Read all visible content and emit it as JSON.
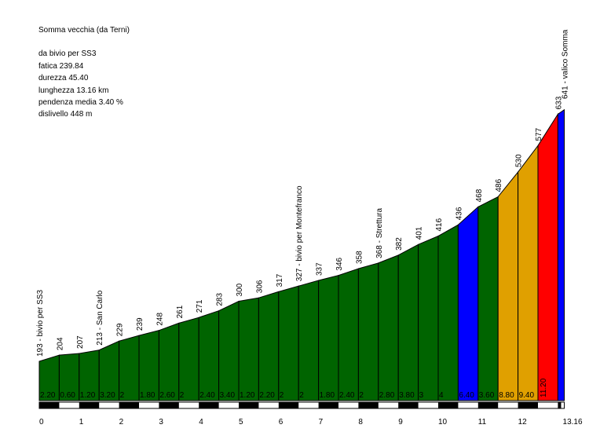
{
  "info": {
    "title": "Somma vecchia (da Terni)",
    "from": "da bivio per SS3",
    "fatica": "fatica 239.84",
    "durezza": "durezza 45.40",
    "lunghezza": "lunghezza 13.16 km",
    "pendenza": "pendenza media 3.40 %",
    "dislivello": "dislivello 448 m"
  },
  "chart_data": {
    "type": "area",
    "xlabel": "",
    "ylabel": "",
    "xlim": [
      0,
      13.16
    ],
    "ylim": [
      193,
      641
    ],
    "grid": false,
    "points": [
      {
        "km": 0.0,
        "alt": 193,
        "label": "193 - bivio per SS3"
      },
      {
        "km": 0.5,
        "alt": 204,
        "label": "204"
      },
      {
        "km": 1.0,
        "alt": 207,
        "label": "207"
      },
      {
        "km": 1.5,
        "alt": 213,
        "label": "213 - San Carlo"
      },
      {
        "km": 2.0,
        "alt": 229,
        "label": "229"
      },
      {
        "km": 2.5,
        "alt": 239,
        "label": "239"
      },
      {
        "km": 3.0,
        "alt": 248,
        "label": "248"
      },
      {
        "km": 3.5,
        "alt": 261,
        "label": "261"
      },
      {
        "km": 4.0,
        "alt": 271,
        "label": "271"
      },
      {
        "km": 4.5,
        "alt": 283,
        "label": "283"
      },
      {
        "km": 5.0,
        "alt": 300,
        "label": "300"
      },
      {
        "km": 5.5,
        "alt": 306,
        "label": "306"
      },
      {
        "km": 6.0,
        "alt": 317,
        "label": "317"
      },
      {
        "km": 6.5,
        "alt": 327,
        "label": "327 - bivio per Montefranco"
      },
      {
        "km": 7.0,
        "alt": 337,
        "label": "337"
      },
      {
        "km": 7.5,
        "alt": 346,
        "label": "346"
      },
      {
        "km": 8.0,
        "alt": 358,
        "label": "358"
      },
      {
        "km": 8.5,
        "alt": 368,
        "label": "368 - Strettura"
      },
      {
        "km": 9.0,
        "alt": 382,
        "label": "382"
      },
      {
        "km": 9.5,
        "alt": 401,
        "label": "401"
      },
      {
        "km": 10.0,
        "alt": 416,
        "label": "416"
      },
      {
        "km": 10.5,
        "alt": 436,
        "label": "436"
      },
      {
        "km": 11.0,
        "alt": 468,
        "label": "468"
      },
      {
        "km": 11.5,
        "alt": 486,
        "label": "486"
      },
      {
        "km": 12.0,
        "alt": 530,
        "label": "530"
      },
      {
        "km": 12.5,
        "alt": 577,
        "label": "577"
      },
      {
        "km": 13.0,
        "alt": 633,
        "label": "633"
      },
      {
        "km": 13.16,
        "alt": 641,
        "label": "641 - valico Somma"
      }
    ],
    "segments": [
      {
        "grade": "2.20",
        "color": "#006400"
      },
      {
        "grade": "0.60",
        "color": "#006400"
      },
      {
        "grade": "1.20",
        "color": "#006400"
      },
      {
        "grade": "3.20",
        "color": "#006400"
      },
      {
        "grade": "2",
        "color": "#006400"
      },
      {
        "grade": "1.80",
        "color": "#006400"
      },
      {
        "grade": "2.60",
        "color": "#006400"
      },
      {
        "grade": "2",
        "color": "#006400"
      },
      {
        "grade": "2.40",
        "color": "#006400"
      },
      {
        "grade": "3.40",
        "color": "#006400"
      },
      {
        "grade": "1.20",
        "color": "#006400"
      },
      {
        "grade": "2.20",
        "color": "#006400"
      },
      {
        "grade": "2",
        "color": "#006400"
      },
      {
        "grade": "2",
        "color": "#006400"
      },
      {
        "grade": "1.80",
        "color": "#006400"
      },
      {
        "grade": "2.40",
        "color": "#006400"
      },
      {
        "grade": "2",
        "color": "#006400"
      },
      {
        "grade": "2.80",
        "color": "#006400"
      },
      {
        "grade": "3.80",
        "color": "#006400"
      },
      {
        "grade": "3",
        "color": "#006400"
      },
      {
        "grade": "4",
        "color": "#006400"
      },
      {
        "grade": "6.40",
        "color": "#0000ff"
      },
      {
        "grade": "3.60",
        "color": "#006400"
      },
      {
        "grade": "8.80",
        "color": "#e0a000"
      },
      {
        "grade": "9.40",
        "color": "#e0a000"
      },
      {
        "grade": "11.20",
        "color": "#ff0000"
      },
      {
        "grade": "",
        "color": "#0000ff"
      }
    ],
    "xticks": [
      "0",
      "1",
      "2",
      "3",
      "4",
      "5",
      "6",
      "7",
      "8",
      "9",
      "10",
      "11",
      "12",
      "13.16"
    ]
  }
}
